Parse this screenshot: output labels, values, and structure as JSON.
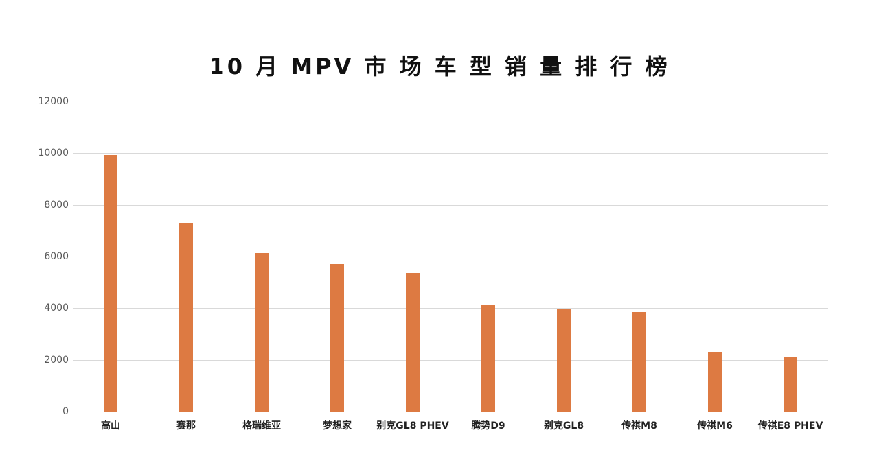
{
  "chart_data": {
    "type": "bar",
    "title": "10 月 MPV 市 场 车 型 销 量 排 行 榜",
    "xlabel": "",
    "ylabel": "",
    "ylim": [
      0,
      12000
    ],
    "yticks": [
      0,
      2000,
      4000,
      6000,
      8000,
      10000,
      12000
    ],
    "grid": true,
    "legend": null,
    "bar_color": "#dd7a42",
    "categories": [
      "高山",
      "赛那",
      "格瑞维亚",
      "梦想家",
      "别克GL8 PHEV",
      "腾势D9",
      "别克GL8",
      "传祺M8",
      "传祺M6",
      "传祺E8 PHEV"
    ],
    "values": [
      9930,
      7300,
      6135,
      5710,
      5365,
      4115,
      3980,
      3850,
      2310,
      2125
    ]
  }
}
